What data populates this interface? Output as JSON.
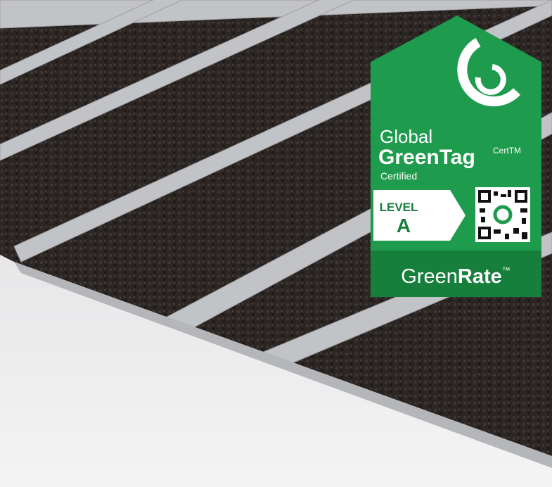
{
  "badge": {
    "line1": "Global",
    "brand": "GreenTag",
    "superscript": "CertTM",
    "status": "Certified",
    "level_label": "LEVEL",
    "level": "A"
  },
  "footer": {
    "part1": "Green",
    "part2": "Rate",
    "mark": "™"
  }
}
